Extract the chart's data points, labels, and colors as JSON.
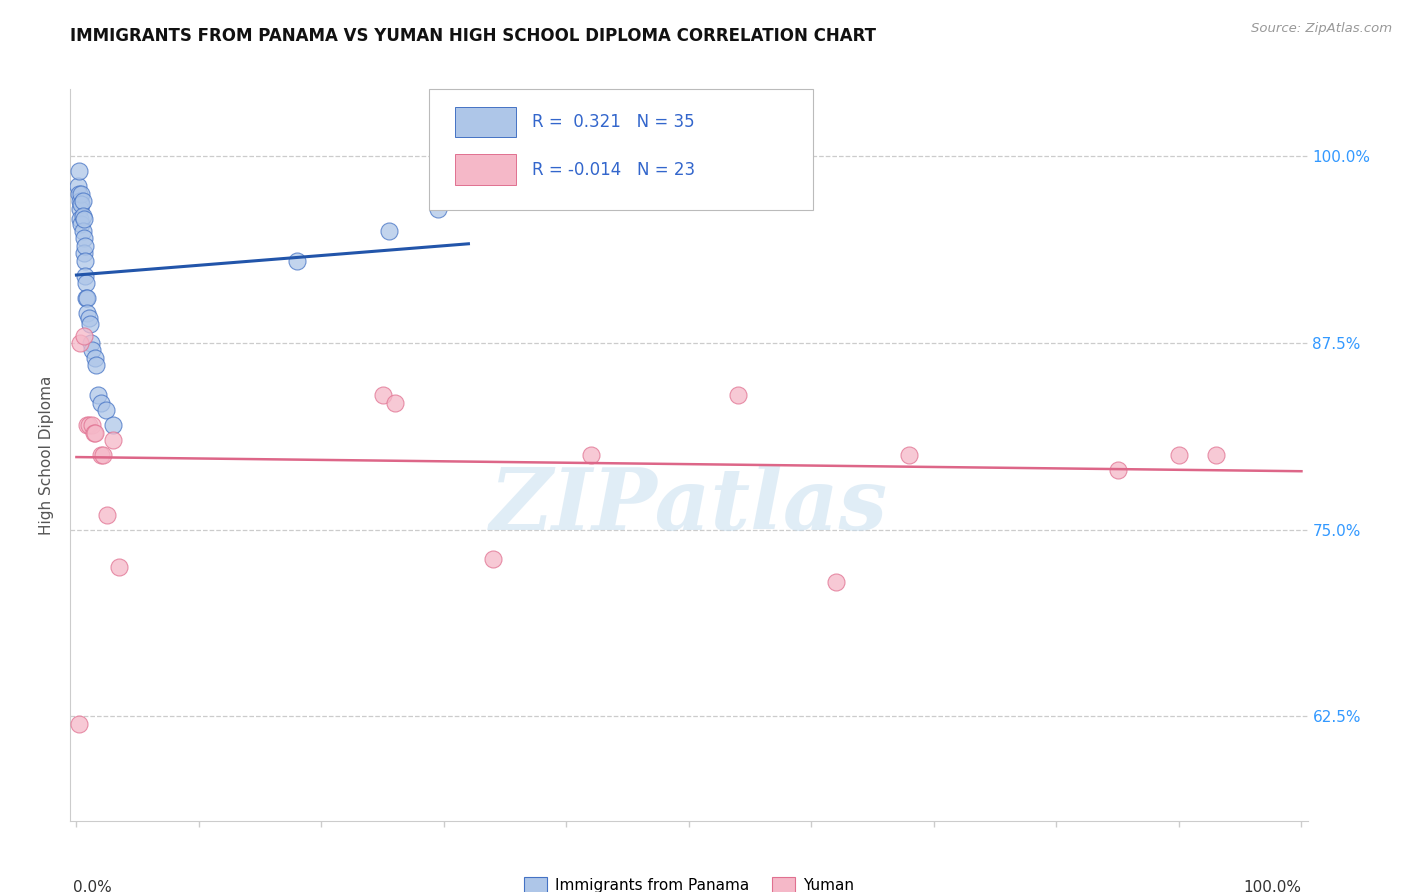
{
  "title": "IMMIGRANTS FROM PANAMA VS YUMAN HIGH SCHOOL DIPLOMA CORRELATION CHART",
  "source": "Source: ZipAtlas.com",
  "ylabel": "High School Diploma",
  "legend_bottom": [
    "Immigrants from Panama",
    "Yuman"
  ],
  "xlim": [
    -0.005,
    1.005
  ],
  "ylim": [
    0.555,
    1.045
  ],
  "yticks": [
    0.625,
    0.75,
    0.875,
    1.0
  ],
  "right_ytick_labels": [
    "62.5%",
    "75.0%",
    "87.5%",
    "100.0%"
  ],
  "xtick_positions": [
    0.0,
    0.1,
    0.2,
    0.3,
    0.4,
    0.5,
    0.6,
    0.7,
    0.8,
    0.9,
    1.0
  ],
  "blue_R": 0.321,
  "blue_N": 35,
  "pink_R": -0.014,
  "pink_N": 23,
  "blue_fill": "#aec6e8",
  "pink_fill": "#f5b8c8",
  "blue_edge": "#4472c4",
  "pink_edge": "#e07090",
  "line_blue": "#2255aa",
  "line_pink": "#dd6688",
  "background_color": "#ffffff",
  "watermark_text": "ZIPatlas",
  "watermark_color": "#c8dff0",
  "grid_color": "#cccccc",
  "blue_scatter_x": [
    0.001,
    0.002,
    0.002,
    0.003,
    0.003,
    0.003,
    0.004,
    0.004,
    0.004,
    0.005,
    0.005,
    0.005,
    0.006,
    0.006,
    0.006,
    0.007,
    0.007,
    0.007,
    0.008,
    0.008,
    0.009,
    0.009,
    0.01,
    0.011,
    0.012,
    0.013,
    0.015,
    0.016,
    0.018,
    0.02,
    0.024,
    0.03,
    0.18,
    0.255,
    0.295
  ],
  "blue_scatter_y": [
    0.98,
    0.99,
    0.975,
    0.97,
    0.965,
    0.958,
    0.975,
    0.968,
    0.955,
    0.97,
    0.96,
    0.95,
    0.958,
    0.945,
    0.935,
    0.94,
    0.93,
    0.92,
    0.915,
    0.905,
    0.905,
    0.895,
    0.892,
    0.888,
    0.875,
    0.87,
    0.865,
    0.86,
    0.84,
    0.835,
    0.83,
    0.82,
    0.93,
    0.95,
    0.965
  ],
  "pink_scatter_x": [
    0.002,
    0.003,
    0.006,
    0.009,
    0.01,
    0.013,
    0.014,
    0.015,
    0.02,
    0.022,
    0.025,
    0.03,
    0.035,
    0.25,
    0.26,
    0.34,
    0.42,
    0.54,
    0.62,
    0.68,
    0.85,
    0.9,
    0.93
  ],
  "pink_scatter_y": [
    0.62,
    0.875,
    0.88,
    0.82,
    0.82,
    0.82,
    0.815,
    0.815,
    0.8,
    0.8,
    0.76,
    0.81,
    0.725,
    0.84,
    0.835,
    0.73,
    0.8,
    0.84,
    0.715,
    0.8,
    0.79,
    0.8,
    0.8
  ]
}
